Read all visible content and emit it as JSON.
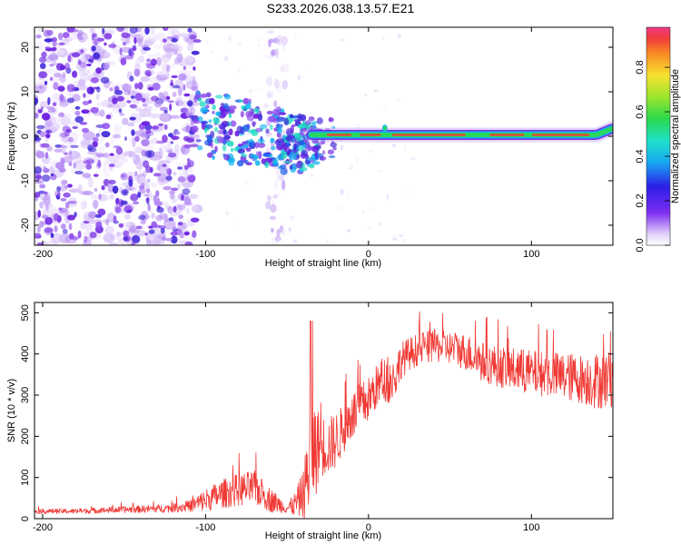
{
  "figure": {
    "title": "S233.2026.038.13.57.E21"
  },
  "chart_data": [
    {
      "type": "heatmap",
      "title": "S233.2026.038.13.57.E21",
      "xlabel": "Height of straight line (km)",
      "ylabel": "Frequency (Hz)",
      "xlim": [
        -205,
        150
      ],
      "ylim": [
        -24.5,
        24.5
      ],
      "xticks": [
        -200,
        -100,
        0,
        100
      ],
      "yticks": [
        -20,
        -10,
        0,
        10,
        20
      ],
      "colorbar": {
        "label": "Normalized spectral amplitude",
        "range": [
          0,
          0.98
        ],
        "ticks": [
          0.0,
          0.2,
          0.4,
          0.6,
          0.8
        ],
        "tick_labels": [
          "0.0",
          "0.2",
          "0.4",
          "0.6",
          "0.8"
        ],
        "colormap": "rainbow"
      },
      "regions": [
        {
          "name": "scattered noise",
          "x_range": [
            -205,
            -105
          ],
          "freq_range": [
            -24,
            24
          ],
          "amplitude": 0.15
        },
        {
          "name": "transition cluster",
          "x_range": [
            -105,
            -30
          ],
          "freq_range": [
            -9,
            8
          ],
          "amplitude": 0.3
        },
        {
          "name": "tone band",
          "x_range": [
            -30,
            150
          ],
          "center_freq_hz": 0.3,
          "amplitude": 0.85
        }
      ],
      "colors": {
        "low": "#6a1fe0",
        "mid": "#12b4f0",
        "band": "#f3393d",
        "band_edge": "#28d85a"
      }
    },
    {
      "type": "line",
      "xlabel": "Height of straight line (km)",
      "ylabel": "SNR (10 * v/v)",
      "xlim": [
        -205,
        150
      ],
      "ylim": [
        0,
        525
      ],
      "xticks": [
        -200,
        -100,
        0,
        100
      ],
      "yticks": [
        0,
        100,
        200,
        300,
        400,
        500
      ],
      "series": [
        {
          "name": "SNR",
          "color": "#f03a35",
          "x": [
            -205,
            -180,
            -150,
            -125,
            -110,
            -100,
            -90,
            -80,
            -70,
            -60,
            -50,
            -45,
            -40,
            -35,
            -30,
            -25,
            -20,
            -15,
            -10,
            -5,
            0,
            5,
            10,
            15,
            20,
            25,
            30,
            40,
            50,
            60,
            70,
            80,
            90,
            100,
            110,
            120,
            130,
            140,
            150
          ],
          "y": [
            18,
            18,
            22,
            25,
            30,
            45,
            60,
            70,
            75,
            45,
            25,
            35,
            60,
            150,
            180,
            175,
            190,
            220,
            250,
            270,
            290,
            320,
            340,
            330,
            385,
            400,
            410,
            420,
            415,
            405,
            380,
            370,
            360,
            355,
            350,
            345,
            340,
            335,
            340
          ],
          "noise": [
            6,
            6,
            8,
            10,
            14,
            28,
            35,
            40,
            42,
            30,
            12,
            30,
            60,
            150,
            80,
            70,
            70,
            60,
            60,
            60,
            55,
            55,
            55,
            60,
            45,
            40,
            40,
            40,
            40,
            45,
            50,
            50,
            55,
            55,
            55,
            60,
            60,
            70,
            70
          ]
        }
      ]
    }
  ]
}
